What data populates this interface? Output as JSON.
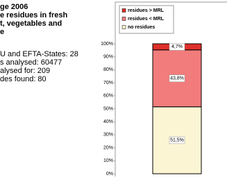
{
  "text_lines": [
    "ge 2006",
    "e residues in fresh",
    "t, vegetables and",
    "e",
    "U and EFTA-States: 28",
    "s analysed: 60477",
    "alysed for: 209",
    "des found: 80"
  ],
  "chart_data": {
    "type": "stacked-bar",
    "categories": [
      null
    ],
    "series": [
      {
        "name": "no residues",
        "color": "#fcf5d4",
        "values": [
          51.5
        ],
        "value_labels": [
          "51,5%"
        ]
      },
      {
        "name": "residues < MRL",
        "color": "#f27c7c",
        "values": [
          43.8
        ],
        "value_labels": [
          "43,8%"
        ]
      },
      {
        "name": "residues > MRL",
        "color": "#e0302a",
        "values": [
          4.7
        ],
        "value_labels": [
          "4,7%"
        ]
      }
    ],
    "ylim": [
      0,
      100
    ],
    "yticks": [
      {
        "value": 0,
        "label": "0%"
      },
      {
        "value": 10,
        "label": "10%"
      },
      {
        "value": 20,
        "label": "20%"
      },
      {
        "value": 30,
        "label": "30%"
      },
      {
        "value": 40,
        "label": "40%"
      },
      {
        "value": 50,
        "label": "50%"
      },
      {
        "value": 60,
        "label": "60%"
      },
      {
        "value": 70,
        "label": "70%"
      },
      {
        "value": 80,
        "label": "80%"
      },
      {
        "value": 90,
        "label": "90%"
      },
      {
        "value": 100,
        "label": "100%"
      }
    ]
  }
}
